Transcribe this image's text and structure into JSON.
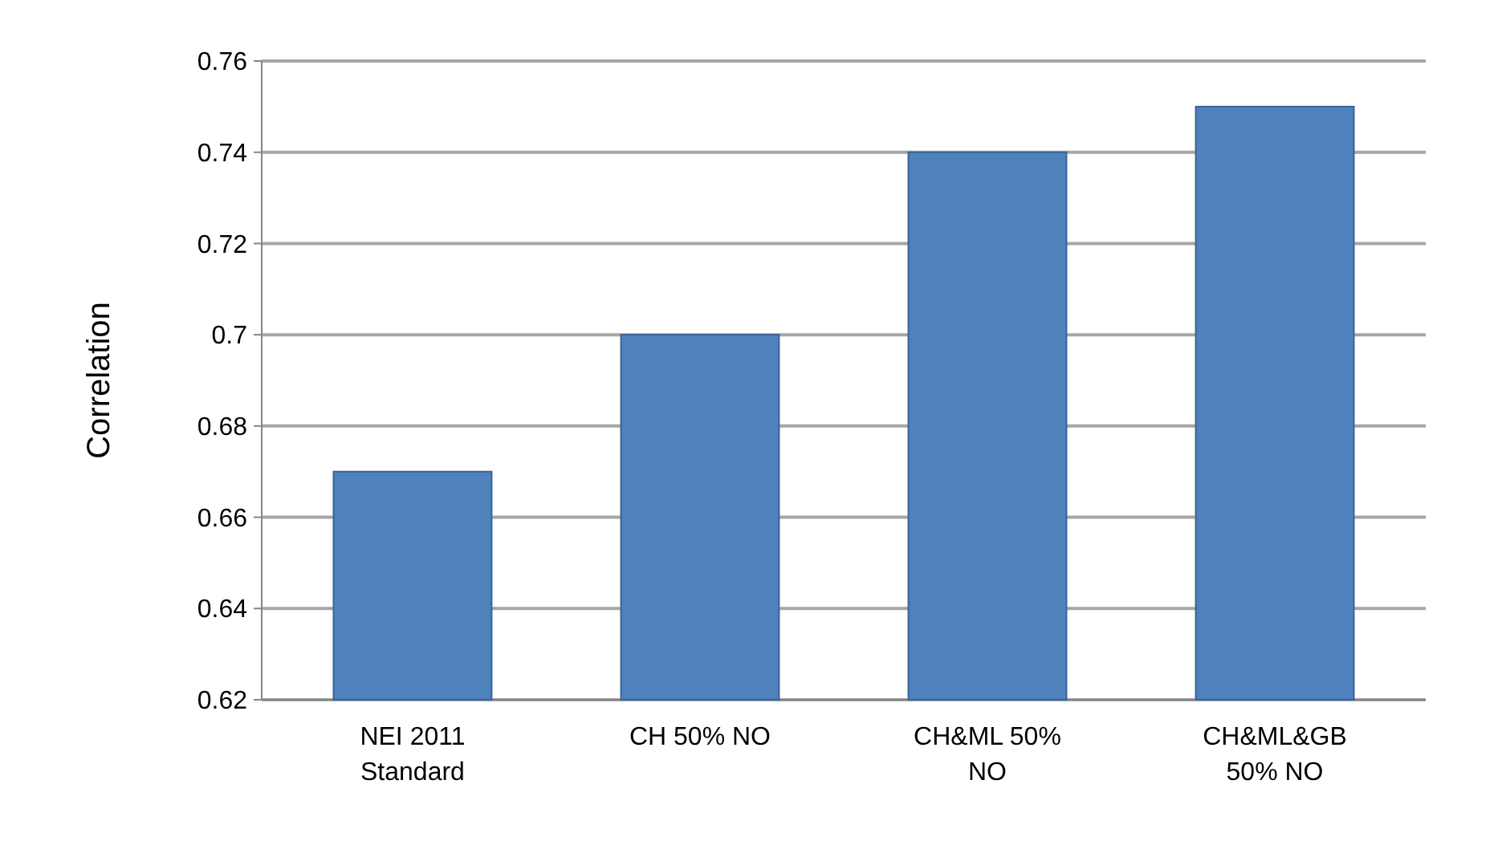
{
  "chart_data": {
    "type": "bar",
    "ylabel": "Correlation",
    "categories": [
      "NEI 2011 Standard",
      "CH 50% NO",
      "CH&ML 50% NO",
      "CH&ML&GB 50% NO"
    ],
    "values": [
      0.67,
      0.7,
      0.74,
      0.75
    ],
    "color": "#4f81bd",
    "ylim": [
      0.62,
      0.76
    ],
    "yticks": [
      0.62,
      0.64,
      0.66,
      0.68,
      0.7,
      0.72,
      0.74,
      0.76
    ],
    "grid": true
  }
}
